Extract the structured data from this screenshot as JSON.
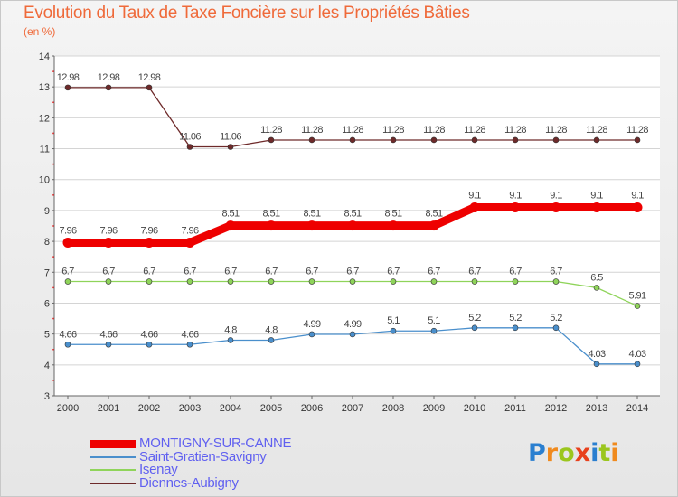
{
  "header": {
    "title": "Evolution du Taux de Taxe Foncière sur les Propriétés Bâties",
    "subtitle": "(en %)"
  },
  "chart_data": {
    "type": "line",
    "title": "Evolution du Taux de Taxe Foncière sur les Propriétés Bâties",
    "ylabel": "(en %)",
    "xlabel": "",
    "ylim": [
      3,
      14
    ],
    "yticks": [
      3,
      4,
      5,
      6,
      7,
      8,
      9,
      10,
      11,
      12,
      13,
      14
    ],
    "x": [
      "2000",
      "2001",
      "2002",
      "2003",
      "2004",
      "2005",
      "2006",
      "2007",
      "2008",
      "2009",
      "2010",
      "2011",
      "2012",
      "2013",
      "2014"
    ],
    "series": [
      {
        "name": "MONTIGNY-SUR-CANNE",
        "color": "#ee0000",
        "emphasis": true,
        "values": [
          7.96,
          7.96,
          7.96,
          7.96,
          8.51,
          8.51,
          8.51,
          8.51,
          8.51,
          8.51,
          9.1,
          9.1,
          9.1,
          9.1,
          9.1
        ],
        "labels": [
          "7.96",
          "7.96",
          "7.96",
          "7.96",
          "8.51",
          "8.51",
          "8.51",
          "8.51",
          "8.51",
          "8.51",
          "9.1",
          "9.1",
          "9.1",
          "9.1",
          "9.1"
        ]
      },
      {
        "name": "Saint-Gratien-Savigny",
        "color": "#4a8fcc",
        "emphasis": false,
        "values": [
          4.66,
          4.66,
          4.66,
          4.66,
          4.8,
          4.8,
          4.99,
          4.99,
          5.1,
          5.1,
          5.2,
          5.2,
          5.2,
          4.03,
          4.03
        ],
        "labels": [
          "4.66",
          "4.66",
          "4.66",
          "4.66",
          "4.8",
          "4.8",
          "4.99",
          "4.99",
          "5.1",
          "5.1",
          "5.2",
          "5.2",
          "5.2",
          "4.03",
          "4.03"
        ]
      },
      {
        "name": "Isenay",
        "color": "#8fd45a",
        "emphasis": false,
        "values": [
          6.7,
          6.7,
          6.7,
          6.7,
          6.7,
          6.7,
          6.7,
          6.7,
          6.7,
          6.7,
          6.7,
          6.7,
          6.7,
          6.5,
          5.91
        ],
        "labels": [
          "6.7",
          "6.7",
          "6.7",
          "6.7",
          "6.7",
          "6.7",
          "6.7",
          "6.7",
          "6.7",
          "6.7",
          "6.7",
          "6.7",
          "6.7",
          "6.5",
          "5.91"
        ]
      },
      {
        "name": "Diennes-Aubigny",
        "color": "#6e2a2a",
        "emphasis": false,
        "values": [
          12.98,
          12.98,
          12.98,
          11.06,
          11.06,
          11.28,
          11.28,
          11.28,
          11.28,
          11.28,
          11.28,
          11.28,
          11.28,
          11.28,
          11.28
        ],
        "labels": [
          "12.98",
          "12.98",
          "12.98",
          "11.06",
          "11.06",
          "11.28",
          "11.28",
          "11.28",
          "11.28",
          "11.28",
          "11.28",
          "11.28",
          "11.28",
          "11.28",
          "11.28"
        ]
      }
    ]
  },
  "logo": {
    "letters": [
      "P",
      "r",
      "o",
      "x",
      "i",
      "t",
      "i"
    ],
    "colors": [
      "#2a7fd0",
      "#f08a1e",
      "#9bc61e",
      "#e8401c",
      "#2a7fd0",
      "#9bc61e",
      "#f08a1e"
    ]
  }
}
